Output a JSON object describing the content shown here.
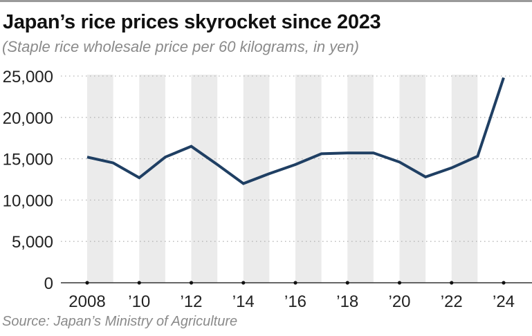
{
  "chart_data": {
    "type": "line",
    "title": "Japan’s rice prices skyrocket since 2023",
    "subtitle": "(Staple rice wholesale price per 60 kilograms, in yen)",
    "source": "Source: Japan’s Ministry of Agriculture",
    "xlabel": "",
    "ylabel": "",
    "x": [
      2008,
      2009,
      2010,
      2011,
      2012,
      2013,
      2014,
      2015,
      2016,
      2017,
      2018,
      2019,
      2020,
      2021,
      2022,
      2023,
      2024
    ],
    "series": [
      {
        "name": "Staple rice wholesale price",
        "color": "#1f3f63",
        "values": [
          15200,
          14500,
          12700,
          15200,
          16500,
          14300,
          12000,
          13200,
          14300,
          15600,
          15700,
          15700,
          14600,
          12800,
          13900,
          15300,
          24800
        ]
      }
    ],
    "ylim": [
      0,
      25000
    ],
    "yticks": [
      0,
      5000,
      10000,
      15000,
      20000,
      25000
    ],
    "ytick_labels": [
      "0",
      "5,000",
      "10,000",
      "15,000",
      "20,000",
      "25,000"
    ],
    "xticks": [
      2008,
      2010,
      2012,
      2014,
      2016,
      2018,
      2020,
      2022,
      2024
    ],
    "xtick_labels": [
      "2008",
      "’10",
      "’12",
      "’14",
      "’16",
      "’18",
      "’20",
      "’22",
      "’24"
    ],
    "grid": "horizontal-dotted",
    "shaded_bands": [
      [
        2008,
        2009
      ],
      [
        2010,
        2011
      ],
      [
        2012,
        2013
      ],
      [
        2014,
        2015
      ],
      [
        2016,
        2017
      ],
      [
        2018,
        2019
      ],
      [
        2020,
        2021
      ],
      [
        2022,
        2023
      ]
    ],
    "band_color": "#ebebeb",
    "legend": "none"
  }
}
